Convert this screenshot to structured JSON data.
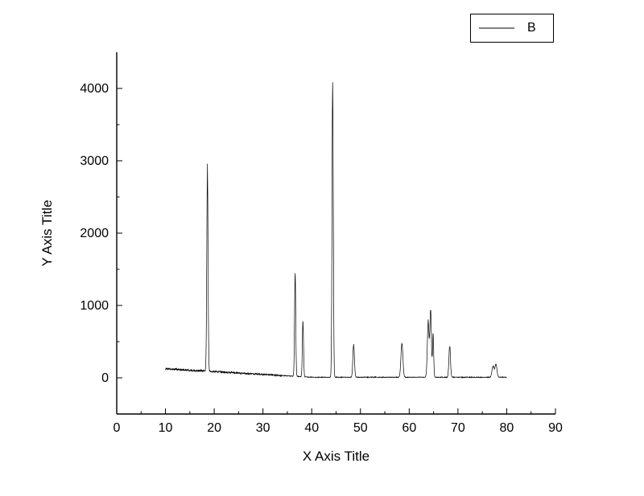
{
  "figure": {
    "background_color": "#ffffff",
    "line_color": "#000000"
  },
  "chart_data": {
    "type": "line",
    "title": "",
    "xlabel": "X Axis Title",
    "ylabel": "Y Axis Title",
    "series": [
      {
        "name": "B",
        "color": "#000000",
        "style": "solid"
      }
    ],
    "legend_position": "top-right",
    "grid": false,
    "xlim": [
      0,
      90
    ],
    "ylim": [
      -500,
      4500
    ],
    "x_ticks": [
      0,
      10,
      20,
      30,
      40,
      50,
      60,
      70,
      80,
      90
    ],
    "y_ticks": [
      0,
      1000,
      2000,
      3000,
      4000
    ],
    "x_minor_step": 5,
    "y_minor_step": 500,
    "x_data_range": [
      10,
      80
    ],
    "baseline": {
      "start_x": 10,
      "start_y": 125,
      "slope": -3.9,
      "floor": 8,
      "noise_amp_left": 20,
      "noise_amp_right": 7,
      "noise_transition_x": 34
    },
    "peaks": [
      {
        "x": 18.6,
        "intensity": 2850,
        "width": 0.13
      },
      {
        "x": 36.6,
        "intensity": 1430,
        "width": 0.12
      },
      {
        "x": 38.2,
        "intensity": 770,
        "width": 0.12
      },
      {
        "x": 44.3,
        "intensity": 4050,
        "width": 0.13
      },
      {
        "x": 48.6,
        "intensity": 460,
        "width": 0.16
      },
      {
        "x": 58.5,
        "intensity": 480,
        "width": 0.2
      },
      {
        "x": 63.9,
        "intensity": 780,
        "width": 0.18
      },
      {
        "x": 64.4,
        "intensity": 950,
        "width": 0.15
      },
      {
        "x": 64.9,
        "intensity": 600,
        "width": 0.12
      },
      {
        "x": 68.3,
        "intensity": 440,
        "width": 0.16
      },
      {
        "x": 77.2,
        "intensity": 160,
        "width": 0.22
      },
      {
        "x": 77.8,
        "intensity": 185,
        "width": 0.2
      }
    ]
  }
}
